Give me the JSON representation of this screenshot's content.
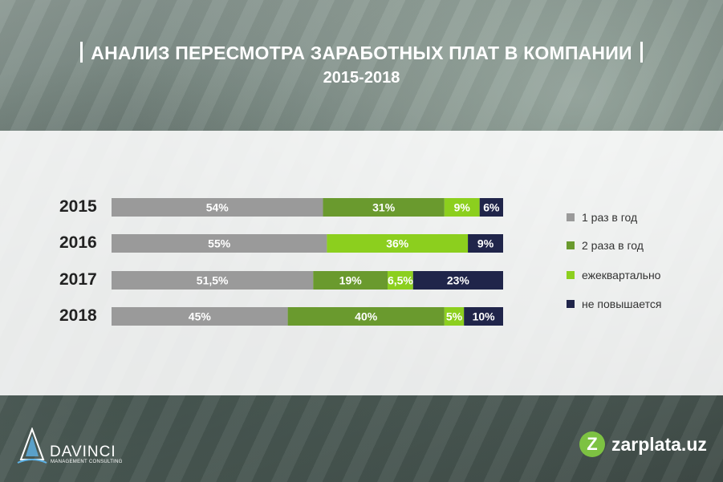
{
  "header": {
    "title": "АНАЛИЗ ПЕРЕСМОТРА ЗАРАБОТНЫХ ПЛАТ В КОМПАНИИ",
    "subtitle": "2015-2018"
  },
  "chart_data": {
    "type": "bar",
    "stacked": true,
    "orientation": "horizontal",
    "categories": [
      "2015",
      "2016",
      "2017",
      "2018"
    ],
    "series": [
      {
        "name": "1 раз в год",
        "color": "#9a9a9a",
        "values": [
          54,
          55,
          51.5,
          45
        ],
        "labels": [
          "54%",
          "55%",
          "51,5%",
          "45%"
        ]
      },
      {
        "name": "2 раза в год",
        "color": "#6a9a2e",
        "values": [
          31,
          0,
          19,
          40
        ],
        "labels": [
          "31%",
          "",
          "19%",
          "40%"
        ]
      },
      {
        "name": "ежеквартально",
        "color": "#8ccf1e",
        "values": [
          9,
          36,
          6.5,
          5
        ],
        "labels": [
          "9%",
          "36%",
          "6,5%",
          "5%"
        ]
      },
      {
        "name": "не повышается",
        "color": "#20254a",
        "values": [
          6,
          9,
          23,
          10
        ],
        "labels": [
          "6%",
          "9%",
          "23%",
          "10%"
        ]
      }
    ],
    "xlim": [
      0,
      100
    ],
    "legend_position": "right"
  },
  "footer": {
    "left_logo_name": "DAVINCI",
    "left_logo_sub": "MANAGEMENT CONSULTING",
    "right_logo_text": "zarplata.uz",
    "right_logo_icon": "z-icon"
  }
}
